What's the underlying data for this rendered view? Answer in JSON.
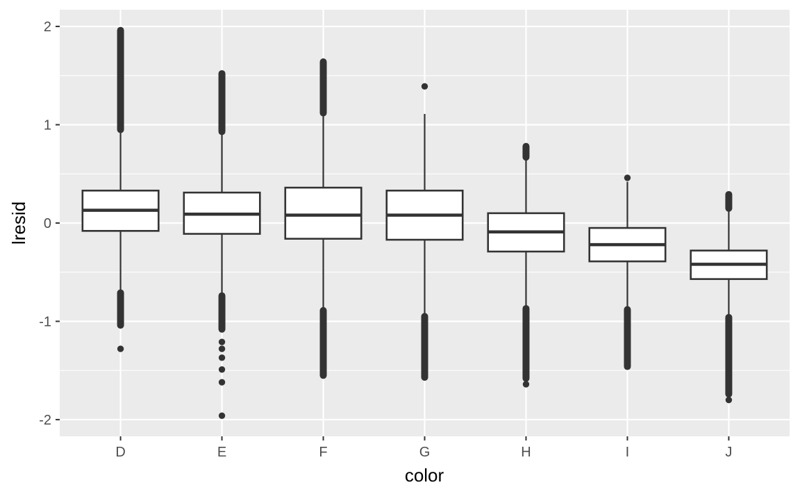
{
  "chart_data": {
    "type": "boxplot",
    "title": "",
    "xlabel": "color",
    "ylabel": "lresid",
    "categories": [
      "D",
      "E",
      "F",
      "G",
      "H",
      "I",
      "J"
    ],
    "ylim": [
      -2.17,
      2.17
    ],
    "y_major_ticks": [
      {
        "value": -2,
        "label": "-2"
      },
      {
        "value": -1,
        "label": "-1"
      },
      {
        "value": 0,
        "label": "0"
      },
      {
        "value": 1,
        "label": "1"
      },
      {
        "value": 2,
        "label": "2"
      }
    ],
    "y_minor_ticks": [
      -1.5,
      -0.5,
      0.5,
      1.5
    ],
    "grid": "on",
    "legend": "none",
    "colors": {
      "figure_bg": "#FFFFFF",
      "panel_bg": "#EBEBEB",
      "grid": "#FFFFFF",
      "box_stroke": "#333333",
      "box_fill": "#FFFFFF",
      "outlier": "#333333",
      "tick_mark": "#333333",
      "tick_label": "#4D4D4D",
      "axis_title": "#000000"
    },
    "series": [
      {
        "category": "D",
        "whisker_low": -0.7,
        "q1": -0.08,
        "median": 0.13,
        "q3": 0.33,
        "whisker_high": 0.93,
        "outliers_high_run": [
          0.95,
          1.96
        ],
        "outliers_high_pts": [],
        "outliers_low_run": [
          -1.04,
          -0.71
        ],
        "outliers_low_pts": [
          -1.28
        ]
      },
      {
        "category": "E",
        "whisker_low": -0.72,
        "q1": -0.11,
        "median": 0.09,
        "q3": 0.31,
        "whisker_high": 0.92,
        "outliers_high_run": [
          0.93,
          1.52
        ],
        "outliers_high_pts": [],
        "outliers_low_run": [
          -1.08,
          -0.74
        ],
        "outliers_low_pts": [
          -1.21,
          -1.28,
          -1.37,
          -1.49,
          -1.62,
          -1.96
        ]
      },
      {
        "category": "F",
        "whisker_low": -0.88,
        "q1": -0.16,
        "median": 0.08,
        "q3": 0.36,
        "whisker_high": 1.1,
        "outliers_high_run": [
          1.12,
          1.64
        ],
        "outliers_high_pts": [],
        "outliers_low_run": [
          -1.55,
          -0.89
        ],
        "outliers_low_pts": []
      },
      {
        "category": "G",
        "whisker_low": -0.93,
        "q1": -0.17,
        "median": 0.08,
        "q3": 0.33,
        "whisker_high": 1.11,
        "outliers_high_run": null,
        "outliers_high_pts": [
          1.39
        ],
        "outliers_low_run": [
          -1.57,
          -0.95
        ],
        "outliers_low_pts": []
      },
      {
        "category": "H",
        "whisker_low": -0.86,
        "q1": -0.29,
        "median": -0.09,
        "q3": 0.1,
        "whisker_high": 0.65,
        "outliers_high_run": [
          0.67,
          0.78
        ],
        "outliers_high_pts": [],
        "outliers_low_run": [
          -1.58,
          -0.87
        ],
        "outliers_low_pts": [
          -1.64
        ]
      },
      {
        "category": "I",
        "whisker_low": -0.87,
        "q1": -0.39,
        "median": -0.22,
        "q3": -0.05,
        "whisker_high": 0.42,
        "outliers_high_run": null,
        "outliers_high_pts": [
          0.46
        ],
        "outliers_low_run": [
          -1.46,
          -0.88
        ],
        "outliers_low_pts": []
      },
      {
        "category": "J",
        "whisker_low": -0.95,
        "q1": -0.57,
        "median": -0.42,
        "q3": -0.28,
        "whisker_high": 0.12,
        "outliers_high_run": [
          0.15,
          0.29
        ],
        "outliers_high_pts": [],
        "outliers_low_run": [
          -1.74,
          -0.96
        ],
        "outliers_low_pts": [
          -1.8
        ]
      }
    ]
  }
}
